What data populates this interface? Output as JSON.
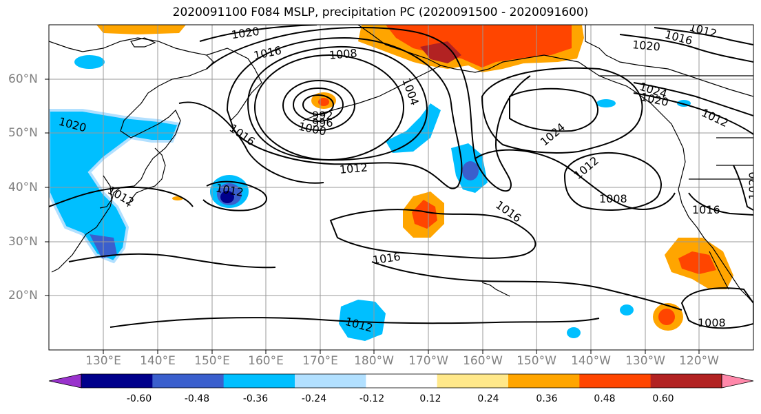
{
  "title": "2020091100 F084 MSLP, precipitation PC (2020091500 - 2020091600)",
  "map": {
    "lon_labels": [
      "130°E",
      "140°E",
      "150°E",
      "160°E",
      "170°E",
      "180°W",
      "170°W",
      "160°W",
      "150°W",
      "140°W",
      "130°W",
      "120°W"
    ],
    "lat_labels": [
      "60°N",
      "50°N",
      "40°N",
      "30°N",
      "20°N"
    ],
    "isobar_labels": [
      "1020",
      "1016",
      "1008",
      "1004",
      "992",
      "996",
      "1000",
      "1016",
      "1012",
      "1012",
      "1012",
      "1016",
      "1016",
      "1012",
      "1024",
      "1012",
      "1008",
      "1024",
      "1020",
      "1016",
      "1012",
      "1020",
      "1016",
      "1020",
      "1012",
      "1008",
      "1016",
      "1020"
    ],
    "colors": {
      "coast": "#000000",
      "grid": "#999999",
      "isobar": "#000000"
    }
  },
  "colorbar": {
    "ticks": [
      "-0.60",
      "-0.48",
      "-0.36",
      "-0.24",
      "-0.12",
      "0.12",
      "0.24",
      "0.36",
      "0.48",
      "0.60"
    ],
    "colors": [
      "#9932cc",
      "#00008b",
      "#3a5fcd",
      "#00bfff",
      "#b2e0ff",
      "#ffffff",
      "#ffe88a",
      "#ffa500",
      "#ff4500",
      "#b22222",
      "#ff88aa"
    ]
  }
}
